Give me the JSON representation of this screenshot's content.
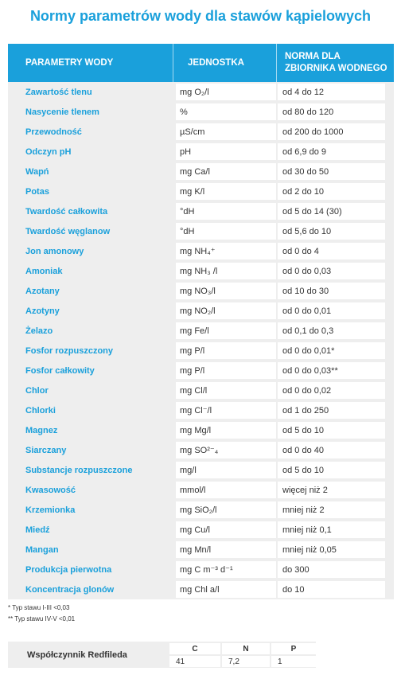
{
  "title": "Normy parametrów wody dla stawów kąpielowych",
  "header": {
    "col1": "PARAMETRY WODY",
    "col2": "JEDNOSTKA",
    "col3_line1": "NORMA DLA",
    "col3_line2": "ZBIORNIKA WODNEGO"
  },
  "rows": [
    {
      "name": "Zawartość tlenu",
      "unit": "mg O₂/l",
      "norm": "od 4 do 12"
    },
    {
      "name": "Nasycenie tlenem",
      "unit": "%",
      "norm": "od 80 do 120"
    },
    {
      "name": "Przewodność",
      "unit": "µS/cm",
      "norm": "od 200 do 1000"
    },
    {
      "name": "Odczyn pH",
      "unit": "pH",
      "norm": "od 6,9 do 9"
    },
    {
      "name": "Wapń",
      "unit": "mg Ca/l",
      "norm": "od 30 do 50"
    },
    {
      "name": "Potas",
      "unit": "mg K/l",
      "norm": "od 2 do 10"
    },
    {
      "name": "Twardość całkowita",
      "unit": "°dH",
      "norm": "od 5 do 14 (30)"
    },
    {
      "name": "Twardość węglanow",
      "unit": "°dH",
      "norm": "od 5,6 do 10"
    },
    {
      "name": "Jon amonowy",
      "unit": "mg NH₄⁺",
      "norm": "od 0 do 4"
    },
    {
      "name": "Amoniak",
      "unit": "mg NH₃ /l",
      "norm": "od 0 do 0,03"
    },
    {
      "name": "Azotany",
      "unit": "mg NO₃/l",
      "norm": "od 10 do 30"
    },
    {
      "name": "Azotyny",
      "unit": "mg NO₂/l",
      "norm": "od 0 do 0,01"
    },
    {
      "name": "Żelazo",
      "unit": "mg Fe/l",
      "norm": "od 0,1 do 0,3"
    },
    {
      "name": "Fosfor rozpuszczony",
      "unit": "mg P/l",
      "norm": "od 0 do 0,01*"
    },
    {
      "name": "Fosfor całkowity",
      "unit": "mg P/l",
      "norm": "od 0 do 0,03**"
    },
    {
      "name": "Chlor",
      "unit": "mg Cl/l",
      "norm": "od 0 do 0,02"
    },
    {
      "name": "Chlorki",
      "unit": "mg Cl⁻/l",
      "norm": "od 1 do 250"
    },
    {
      "name": "Magnez",
      "unit": "mg Mg/l",
      "norm": "od 5 do 10"
    },
    {
      "name": "Siarczany",
      "unit": "mg SO²⁻₄",
      "norm": "od 0 do 40"
    },
    {
      "name": "Substancje rozpuszczone",
      "unit": "mg/l",
      "norm": "od 5 do 10"
    },
    {
      "name": "Kwasowość",
      "unit": "mmol/l",
      "norm": "więcej niż 2"
    },
    {
      "name": "Krzemionka",
      "unit": "mg SiO₂/l",
      "norm": "mniej niż 2"
    },
    {
      "name": "Miedź",
      "unit": "mg Cu/l",
      "norm": "mniej niż 0,1"
    },
    {
      "name": "Mangan",
      "unit": "mg Mn/l",
      "norm": "mniej niż 0,05"
    },
    {
      "name": "Produkcja pierwotna",
      "unit": "mg C m⁻³ d⁻¹",
      "norm": "do 300"
    },
    {
      "name": "Koncentracja glonów",
      "unit": "mg Chl a/l",
      "norm": "do 10"
    }
  ],
  "footnotes": [
    "* Typ stawu I-III <0,03",
    "** Typ stawu IV-V <0,01"
  ],
  "redfield": {
    "label": "Współczynnik Redfileda",
    "columns": [
      {
        "head": "C",
        "value": "41"
      },
      {
        "head": "N",
        "value": "7,2"
      },
      {
        "head": "P",
        "value": "1"
      }
    ]
  }
}
